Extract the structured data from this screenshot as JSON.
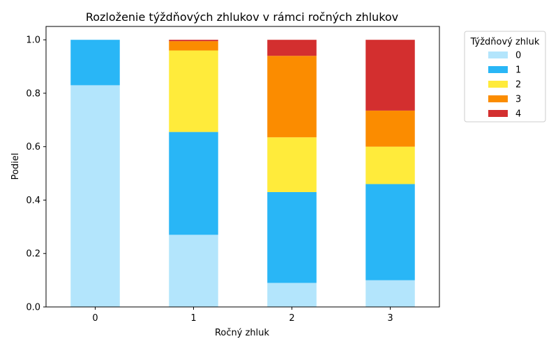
{
  "chart_data": {
    "type": "bar",
    "stacked": true,
    "title": "Rozloženie týždňových zhlukov v rámci ročných zhlukov",
    "xlabel": "Ročný zhluk",
    "ylabel": "Podiel",
    "categories": [
      "0",
      "1",
      "2",
      "3"
    ],
    "ylim": [
      0,
      1.05
    ],
    "yticks": [
      "0.0",
      "0.2",
      "0.4",
      "0.6",
      "0.8",
      "1.0"
    ],
    "legend_title": "Týždňový zhluk",
    "legend_position": "outside-top-right",
    "series": [
      {
        "name": "0",
        "color": "#b3e5fc",
        "values": [
          0.83,
          0.27,
          0.09,
          0.1
        ]
      },
      {
        "name": "1",
        "color": "#29b6f6",
        "values": [
          0.17,
          0.385,
          0.34,
          0.36
        ]
      },
      {
        "name": "2",
        "color": "#ffeb3b",
        "values": [
          0.0,
          0.305,
          0.205,
          0.14
        ]
      },
      {
        "name": "3",
        "color": "#fb8c00",
        "values": [
          0.0,
          0.035,
          0.305,
          0.135
        ]
      },
      {
        "name": "4",
        "color": "#d32f2f",
        "values": [
          0.0,
          0.005,
          0.06,
          0.265
        ]
      }
    ]
  }
}
